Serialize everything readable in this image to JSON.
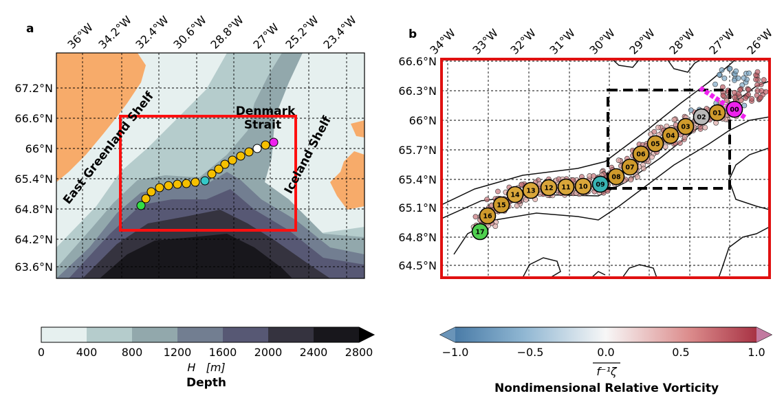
{
  "panel_a": {
    "letter": "a",
    "lon_ticks": [
      "36°W",
      "34.2°W",
      "32.4°W",
      "30.6°W",
      "28.8°W",
      "27°W",
      "25.2°W",
      "23.4°W"
    ],
    "lat_ticks": [
      "67.2°N",
      "66.6°N",
      "66°N",
      "65.4°N",
      "64.8°N",
      "64.2°N",
      "63.6°N"
    ],
    "labels": {
      "denmark_line1": "Denmark",
      "denmark_line2": "Strait",
      "east_greenland": "East Greenland Shelf",
      "iceland": "Iceland Shelf"
    },
    "colorbar": {
      "ticks": [
        "0",
        "400",
        "800",
        "1200",
        "1600",
        "2000",
        "2400",
        "2800"
      ],
      "label": "H   [m]",
      "title": "Depth",
      "colors": [
        "#e6f0ef",
        "#b5cccc",
        "#92a8ac",
        "#727e91",
        "#575874",
        "#35333f",
        "#18171c"
      ]
    },
    "land_color": "#f7ab6a",
    "box_color": "#ff1010",
    "station_color": "#f5c000"
  },
  "panel_b": {
    "letter": "b",
    "lon_ticks": [
      "34°W",
      "33°W",
      "32°W",
      "31°W",
      "30°W",
      "29°W",
      "28°W",
      "27°W",
      "26°W"
    ],
    "lat_ticks": [
      "66.6°N",
      "66.3°N",
      "66°N",
      "65.7°N",
      "65.4°N",
      "65.1°N",
      "64.8°N",
      "64.5°N"
    ],
    "stations": [
      "00",
      "01",
      "02",
      "03",
      "04",
      "05",
      "06",
      "07",
      "08",
      "09",
      "10",
      "11",
      "12",
      "13",
      "14",
      "15",
      "16",
      "17"
    ],
    "colorbar": {
      "ticks": [
        "−1.0",
        "−0.5",
        "0.0",
        "0.5",
        "1.0"
      ],
      "label": "f⁻¹ζ",
      "title": "Nondimensional Relative Vorticity",
      "colors": [
        "#3f7aa8",
        "#ffffff",
        "#a32033"
      ]
    },
    "frame_color": "#e01010",
    "section_color": "#ee22ee"
  }
}
